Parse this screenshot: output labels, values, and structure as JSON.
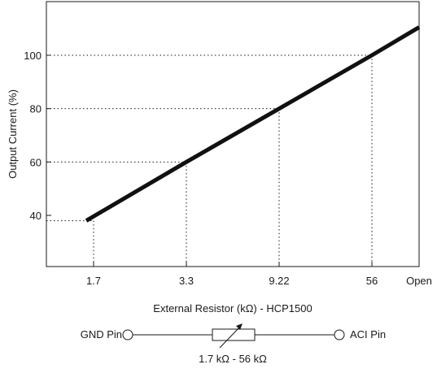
{
  "chart_data": {
    "type": "line",
    "title": "",
    "xlabel": "External Resistor (kΩ) - HCP1500",
    "ylabel": "Output Current (%)",
    "x_ticks": [
      "1.7",
      "3.3",
      "9.22",
      "56",
      "Open"
    ],
    "y_ticks": [
      "40",
      "60",
      "80",
      "100"
    ],
    "ylim": [
      20,
      120
    ],
    "grid": "dotted guide lines from marked points to both axes",
    "series": [
      {
        "x": [
          "1.7",
          "3.3",
          "9.22",
          "56",
          "Open"
        ],
        "values": [
          38,
          60,
          80,
          100,
          110.5
        ],
        "color": "#111111"
      }
    ]
  },
  "schematic": {
    "left_label": "GND Pin",
    "right_label": "ACI Pin",
    "resistor_label": "1.7 kΩ - 56 kΩ"
  }
}
